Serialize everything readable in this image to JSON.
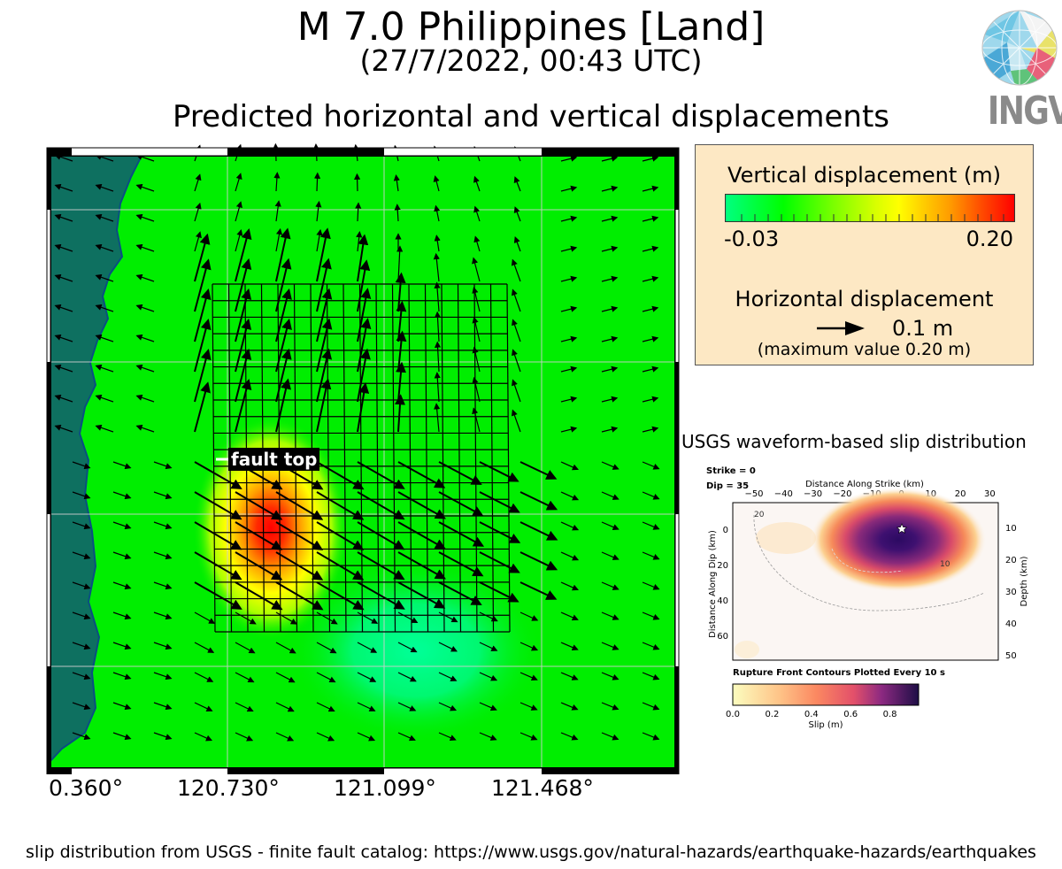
{
  "header": {
    "title": "M 7.0 Philippines [Land]",
    "subtitle": "(27/7/2022, 00:43 UTC)",
    "figure_title": "Predicted horizontal and vertical displacements"
  },
  "logo": {
    "text": "INGV"
  },
  "map": {
    "lon_labels": [
      "0.360°",
      "120.730°",
      "121.099°",
      "121.468°"
    ],
    "fault_label": "fault top",
    "colors": {
      "land": "#00ee00",
      "sea": "#0e7060",
      "uplift": "#ff0000",
      "subsidence": "#00ff90"
    }
  },
  "legend": {
    "vertical_title": "Vertical displacement (m)",
    "cbar_min": "-0.03",
    "cbar_max": "0.20",
    "horizontal_title": "Horizontal displacement",
    "arrow_label": "0.1 m",
    "max_value_text": "(maximum value 0.20 m)"
  },
  "usgs": {
    "title": "USGS waveform-based slip distribution",
    "strike": "Strike = 0",
    "dip": "Dip = 35",
    "top_axis_label": "Distance Along Strike (km)",
    "top_ticks": [
      "−50",
      "−40",
      "−30",
      "−20",
      "−10",
      "0",
      "10",
      "20",
      "30"
    ],
    "left_axis_label": "Distance Along Dip (km)",
    "left_ticks": [
      "0",
      "20",
      "40",
      "60"
    ],
    "right_axis_label": "Depth (km)",
    "right_ticks": [
      "10",
      "20",
      "30",
      "40",
      "50"
    ],
    "contour_labels": [
      "20",
      "10"
    ],
    "contour_note": "Rupture Front Contours Plotted Every 10 s",
    "slip_ticks": [
      "0.0",
      "0.2",
      "0.4",
      "0.6",
      "0.8"
    ],
    "slip_label": "Slip (m)"
  },
  "footer": "slip distribution from USGS - finite fault catalog: https://www.usgs.gov/natural-hazards/earthquake-hazards/earthquakes"
}
